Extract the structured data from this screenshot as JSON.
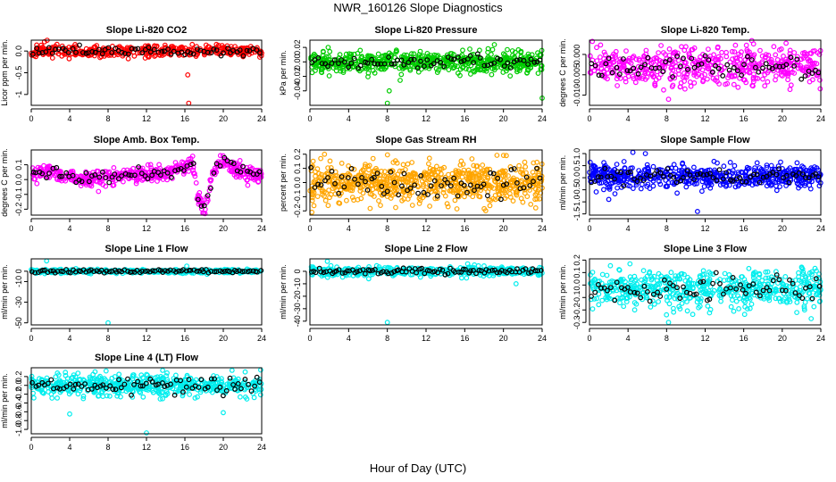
{
  "figure": {
    "title": "NWR_160126  Slope Diagnostics",
    "xlabel": "Hour of Day (UTC)"
  },
  "chart_data": [
    {
      "type": "scatter",
      "title": "Slope Li-820 CO2",
      "ylabel": "Licor ppm per min.",
      "color": "#ff0000",
      "xlim": [
        0,
        24
      ],
      "ylim": [
        -1.25,
        0.25
      ],
      "xticks": [
        0,
        4,
        8,
        12,
        16,
        20,
        24
      ],
      "xtick_labels": [
        "0",
        "4",
        "8",
        "12",
        "16",
        "20",
        "24"
      ],
      "yticks": [
        -1,
        -0.5,
        0
      ],
      "ytick_labels": [
        "-1",
        "-0.5",
        "0.0"
      ],
      "center": 0.0,
      "spread": 0.07,
      "gen_seed": 11,
      "n": 400,
      "n_black": 70,
      "outliers": [
        {
          "x": 16.3,
          "y": -0.55
        },
        {
          "x": 16.4,
          "y": -1.2
        },
        {
          "x": 13.4,
          "y": -0.1
        }
      ]
    },
    {
      "type": "scatter",
      "title": "Slope Li-820 Pressure",
      "ylabel": "kPa per min.",
      "color": "#00cc00",
      "xlim": [
        0,
        24
      ],
      "ylim": [
        -0.06,
        0.03
      ],
      "xticks": [
        0,
        4,
        8,
        12,
        16,
        20,
        24
      ],
      "xtick_labels": [
        "0",
        "4",
        "8",
        "12",
        "16",
        "20",
        "24"
      ],
      "yticks": [
        -0.04,
        -0.02,
        0.0,
        0.02
      ],
      "ytick_labels": [
        "-0.04",
        "-0.02",
        "0.00",
        "0.02"
      ],
      "center": 0.0,
      "spread": 0.007,
      "gen_seed": 23,
      "n": 600,
      "n_black": 70,
      "outliers": [
        {
          "x": 8.0,
          "y": -0.057
        },
        {
          "x": 24.0,
          "y": -0.05
        },
        {
          "x": 8.2,
          "y": -0.04
        }
      ]
    },
    {
      "type": "scatter",
      "title": "Slope Li-820 Temp.",
      "ylabel": "degrees C per min.",
      "color": "#ff00ff",
      "xlim": [
        0,
        24
      ],
      "ylim": [
        -0.0125,
        0.0035
      ],
      "xticks": [
        0,
        4,
        8,
        12,
        16,
        20,
        24
      ],
      "xtick_labels": [
        "0",
        "4",
        "8",
        "12",
        "16",
        "20",
        "24"
      ],
      "yticks": [
        -0.01,
        -0.005,
        0.0
      ],
      "ytick_labels": [
        "-0.010",
        "-0.005",
        "0.000"
      ],
      "center": -0.003,
      "spread": 0.0023,
      "gen_seed": 37,
      "n": 520,
      "n_black": 65,
      "outliers": [
        {
          "x": 0.3,
          "y": 0.0032
        },
        {
          "x": 8.2,
          "y": -0.011
        }
      ]
    },
    {
      "type": "scatter",
      "title": "Slope Amb. Box Temp.",
      "ylabel": "degrees C per min.",
      "color": "#ff00ff",
      "xlim": [
        0,
        24
      ],
      "ylim": [
        -0.24,
        0.2
      ],
      "xticks": [
        0,
        4,
        8,
        12,
        16,
        20,
        24
      ],
      "xtick_labels": [
        "0",
        "4",
        "8",
        "12",
        "16",
        "20",
        "24"
      ],
      "yticks": [
        -0.2,
        -0.1,
        0.0,
        0.1
      ],
      "ytick_labels": [
        "-0.2",
        "-0.1",
        "0.0",
        "0.1"
      ],
      "center": 0.0,
      "spread": 0.025,
      "gen_seed": 41,
      "n": 520,
      "n_black": 70,
      "trend": [
        [
          0,
          0.03
        ],
        [
          2,
          0.05
        ],
        [
          4,
          0.02
        ],
        [
          6,
          0.0
        ],
        [
          10,
          0.03
        ],
        [
          14,
          0.04
        ],
        [
          16,
          0.08
        ],
        [
          16.8,
          0.12
        ],
        [
          17.3,
          -0.12
        ],
        [
          18,
          -0.2
        ],
        [
          18.5,
          -0.08
        ],
        [
          19,
          0.05
        ],
        [
          20,
          0.14
        ],
        [
          21,
          0.08
        ],
        [
          22,
          0.05
        ],
        [
          24,
          0.02
        ]
      ],
      "outliers": [
        {
          "x": 7.0,
          "y": -0.08
        },
        {
          "x": 18.1,
          "y": -0.23
        }
      ]
    },
    {
      "type": "scatter",
      "title": "Slope Gas Stream RH",
      "ylabel": "percent per min.",
      "color": "#ffa500",
      "xlim": [
        0,
        24
      ],
      "ylim": [
        -0.23,
        0.23
      ],
      "xticks": [
        0,
        4,
        8,
        12,
        16,
        20,
        24
      ],
      "xtick_labels": [
        "0",
        "4",
        "8",
        "12",
        "16",
        "20",
        "24"
      ],
      "yticks": [
        -0.2,
        -0.1,
        0.0,
        0.1,
        0.2
      ],
      "ytick_labels": [
        "-0.2",
        "-0.1",
        "0.0",
        "0.1",
        "0.2"
      ],
      "center": 0.0,
      "spread": 0.07,
      "gen_seed": 53,
      "n": 700,
      "n_black": 70,
      "outliers": [
        {
          "x": 0.2,
          "y": -0.21
        },
        {
          "x": 1.5,
          "y": 0.2
        },
        {
          "x": 20.3,
          "y": 0.19
        }
      ]
    },
    {
      "type": "scatter",
      "title": "Slope Sample Flow",
      "ylabel": "ml/min per min.",
      "color": "#0000ff",
      "xlim": [
        0,
        24
      ],
      "ylim": [
        -1.55,
        1.15
      ],
      "xticks": [
        0,
        4,
        8,
        12,
        16,
        20,
        24
      ],
      "xtick_labels": [
        "0",
        "4",
        "8",
        "12",
        "16",
        "20",
        "24"
      ],
      "yticks": [
        -1.5,
        -1.0,
        -0.5,
        0.0,
        0.5,
        1.0
      ],
      "ytick_labels": [
        "-1.5",
        "-1.0",
        "-0.5",
        "0.0",
        "0.5",
        "1.0"
      ],
      "center": 0.05,
      "spread": 0.22,
      "gen_seed": 67,
      "n": 560,
      "n_black": 70,
      "outliers": [
        {
          "x": 4.5,
          "y": 1.05
        },
        {
          "x": 5.8,
          "y": 1.0
        },
        {
          "x": 11.2,
          "y": -1.4
        },
        {
          "x": 2.0,
          "y": -0.9
        }
      ]
    },
    {
      "type": "scatter",
      "title": "Slope Line 1 Flow",
      "ylabel": "ml/min per min.",
      "color": "#00eeee",
      "xlim": [
        0,
        24
      ],
      "ylim": [
        -52,
        12
      ],
      "xticks": [
        0,
        4,
        8,
        12,
        16,
        20,
        24
      ],
      "xtick_labels": [
        "0",
        "4",
        "8",
        "12",
        "16",
        "20",
        "24"
      ],
      "yticks": [
        -50,
        -30,
        -10,
        0
      ],
      "ytick_labels": [
        "-50",
        "-30",
        "-10",
        "0"
      ],
      "center": 0.0,
      "spread": 0.9,
      "gen_seed": 71,
      "n": 420,
      "n_black": 90,
      "outliers": [
        {
          "x": 8.0,
          "y": -50
        },
        {
          "x": 1.6,
          "y": 10
        },
        {
          "x": 16.2,
          "y": 5
        }
      ]
    },
    {
      "type": "scatter",
      "title": "Slope Line 2 Flow",
      "ylabel": "ml/min per min.",
      "color": "#00eeee",
      "xlim": [
        0,
        24
      ],
      "ylim": [
        -43,
        10
      ],
      "xticks": [
        0,
        4,
        8,
        12,
        16,
        20,
        24
      ],
      "xtick_labels": [
        "0",
        "4",
        "8",
        "12",
        "16",
        "20",
        "24"
      ],
      "yticks": [
        -40,
        -30,
        -20,
        -10,
        0
      ],
      "ytick_labels": [
        "-40",
        "-30",
        "-20",
        "-10",
        "0"
      ],
      "center": 0.0,
      "spread": 1.8,
      "gen_seed": 83,
      "n": 440,
      "n_black": 90,
      "outliers": [
        {
          "x": 8.0,
          "y": -41
        },
        {
          "x": 1.8,
          "y": 8
        },
        {
          "x": 16.3,
          "y": 6
        },
        {
          "x": 21.3,
          "y": -10
        }
      ]
    },
    {
      "type": "scatter",
      "title": "Slope Line 3 Flow",
      "ylabel": "ml/min per min.",
      "color": "#00eeee",
      "xlim": [
        0,
        24
      ],
      "ylim": [
        -0.32,
        0.21
      ],
      "xticks": [
        0,
        4,
        8,
        12,
        16,
        20,
        24
      ],
      "xtick_labels": [
        "0",
        "4",
        "8",
        "12",
        "16",
        "20",
        "24"
      ],
      "yticks": [
        -0.3,
        -0.2,
        -0.1,
        0.0,
        0.1,
        0.2
      ],
      "ytick_labels": [
        "-0.3",
        "-0.2",
        "-0.1",
        "0.0",
        "0.1",
        "0.2"
      ],
      "center": -0.03,
      "spread": 0.08,
      "gen_seed": 97,
      "n": 560,
      "n_black": 70,
      "outliers": [
        {
          "x": 8.2,
          "y": -0.3
        },
        {
          "x": 23.0,
          "y": -0.27
        },
        {
          "x": 4.2,
          "y": 0.17
        }
      ]
    },
    {
      "type": "scatter",
      "title": "Slope Line 4 (LT) Flow",
      "ylabel": "ml/min per min.",
      "color": "#00eeee",
      "xlim": [
        0,
        24
      ],
      "ylim": [
        -1.1,
        0.4
      ],
      "xticks": [
        0,
        4,
        8,
        12,
        16,
        20,
        24
      ],
      "xtick_labels": [
        "0",
        "4",
        "8",
        "12",
        "16",
        "20",
        "24"
      ],
      "yticks": [
        -1.0,
        -0.8,
        -0.6,
        -0.4,
        -0.2,
        0.0,
        0.2
      ],
      "ytick_labels": [
        "-1.0",
        "-0.8",
        "-0.6",
        "-0.4",
        "-0.2",
        "0.0",
        "0.2"
      ],
      "center": 0.0,
      "spread": 0.12,
      "gen_seed": 101,
      "n": 540,
      "n_black": 75,
      "outliers": [
        {
          "x": 12.0,
          "y": -1.08
        },
        {
          "x": 4.0,
          "y": -0.65
        },
        {
          "x": 20.0,
          "y": -0.62
        },
        {
          "x": 23.9,
          "y": 0.35
        }
      ]
    }
  ]
}
